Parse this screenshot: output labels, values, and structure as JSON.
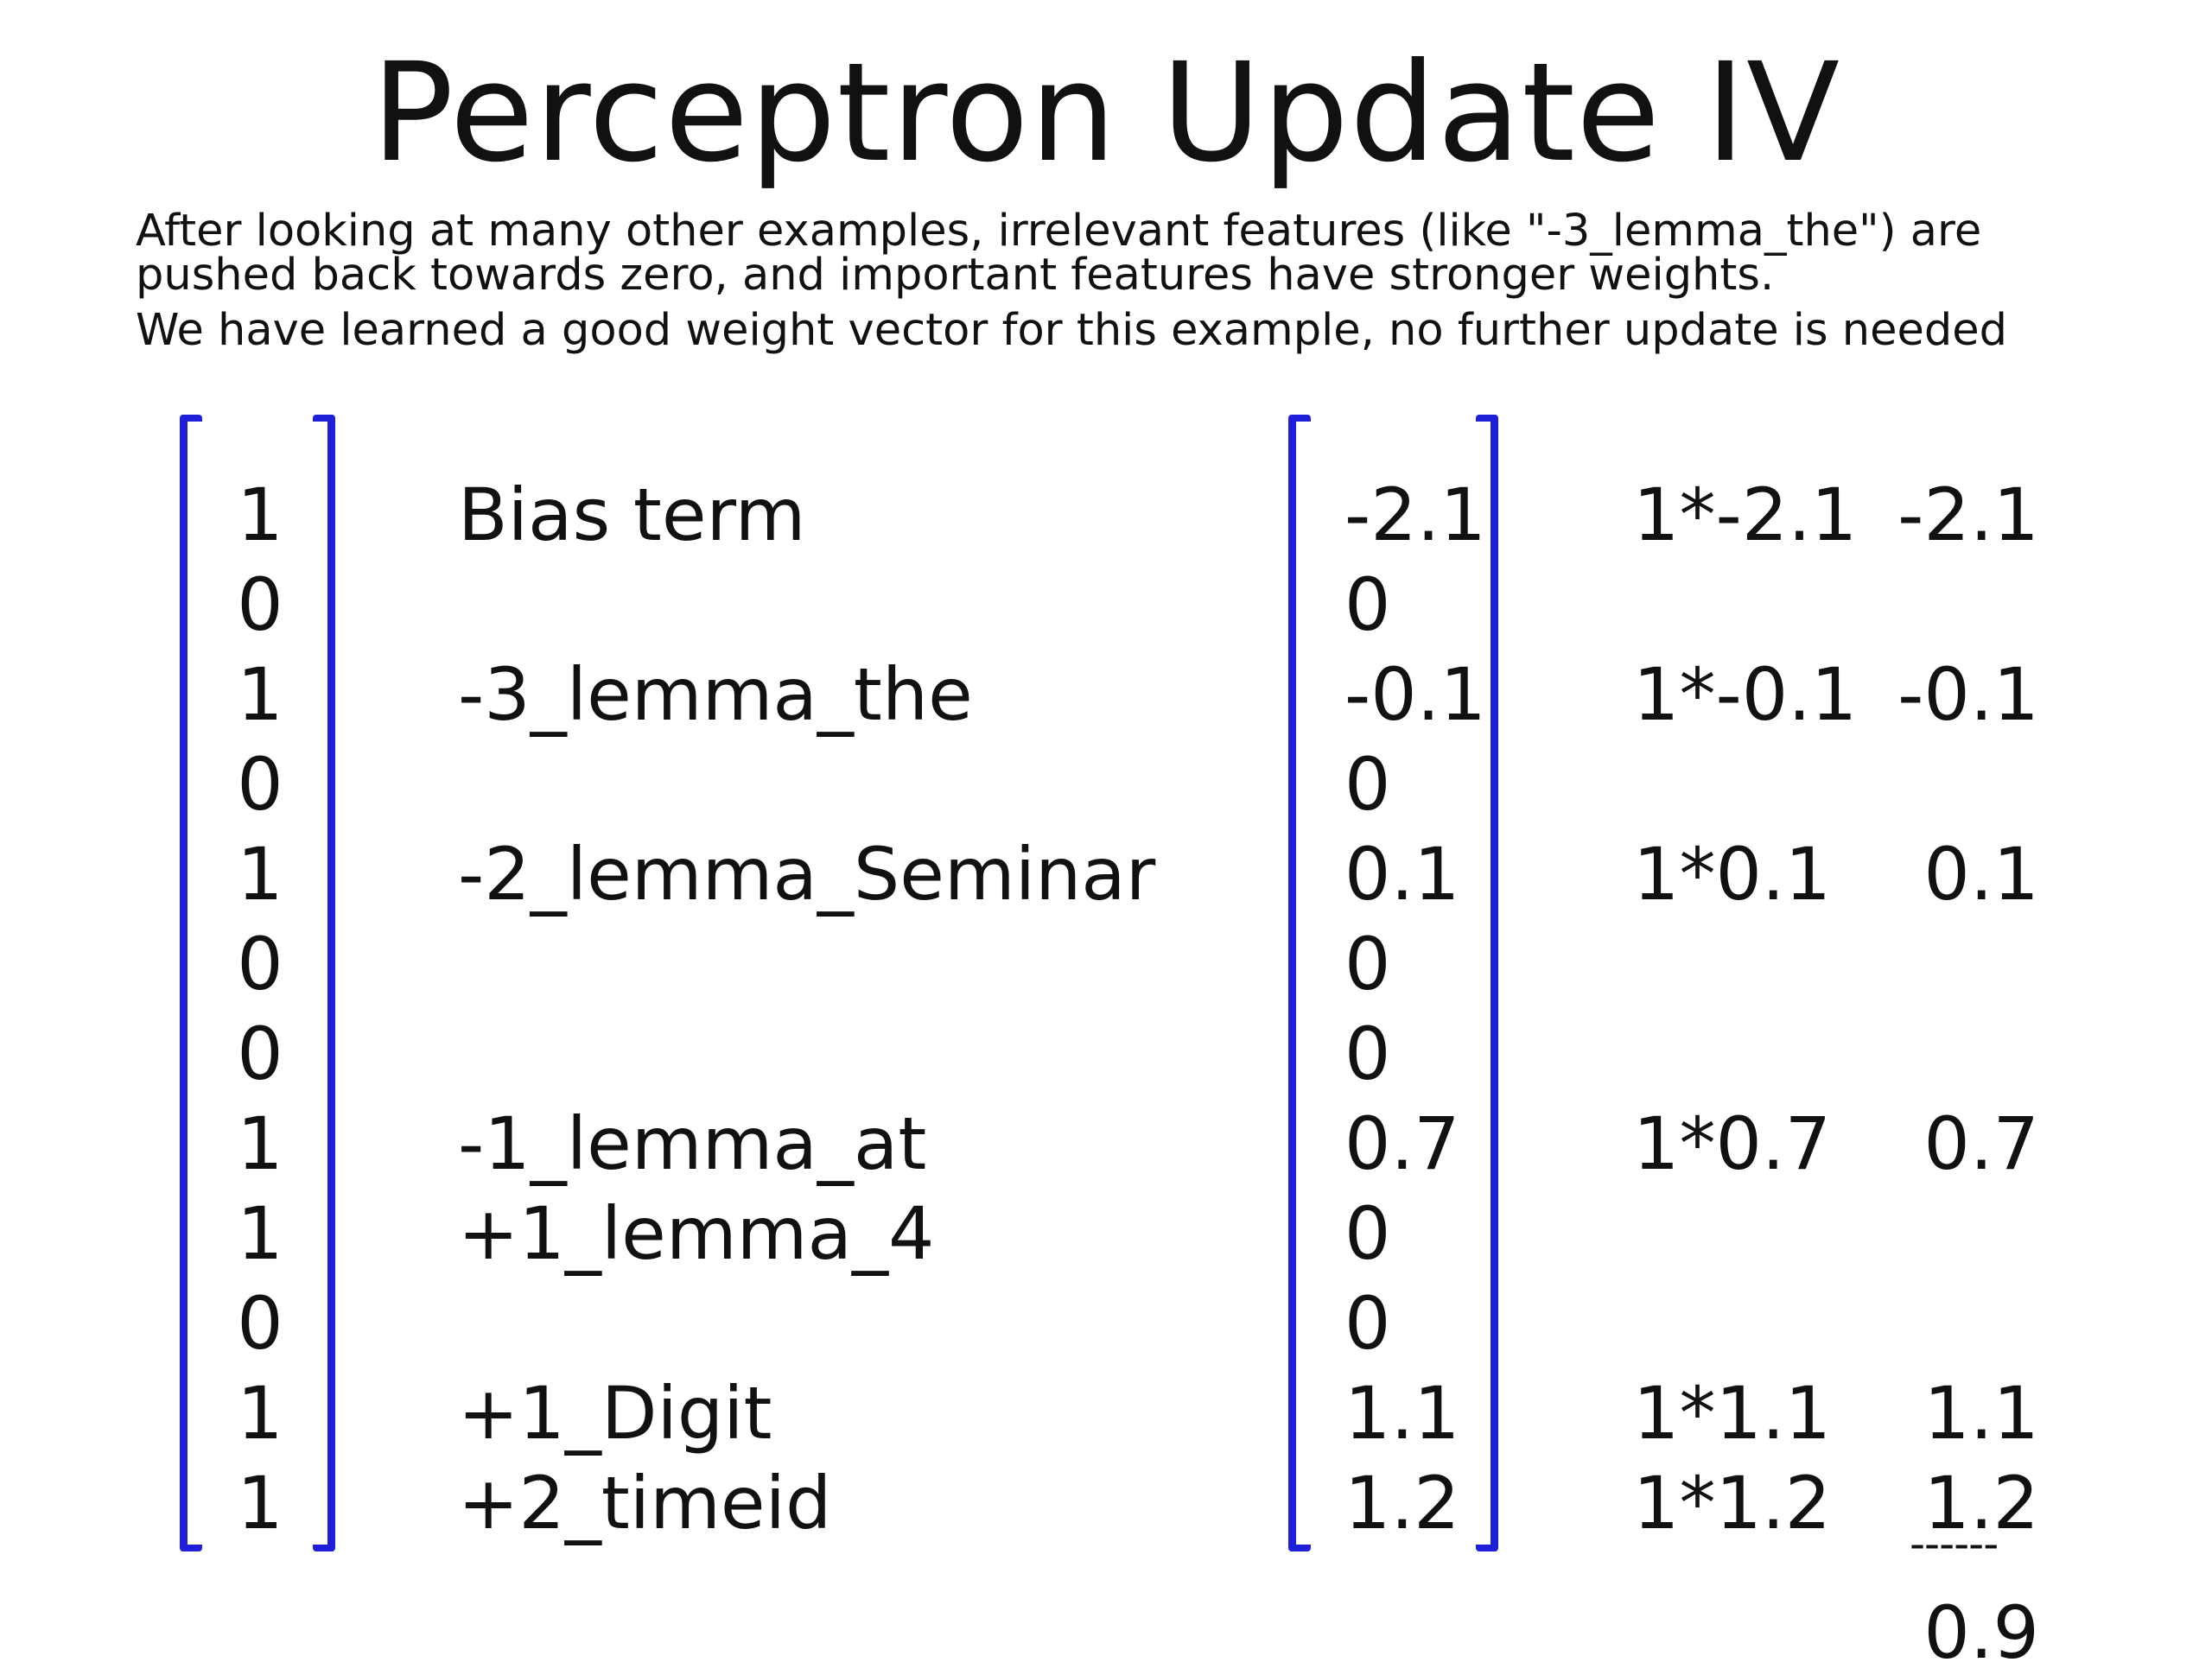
{
  "slide": {
    "title": "Perceptron Update IV",
    "description": [
      "After looking at many other examples, irrelevant features (like \"-3_lemma_the\") are",
      "pushed back towards zero, and important features have stronger weights.",
      "We have learned a good weight vector for this example, no further update is needed"
    ]
  },
  "rows": [
    {
      "feature": "1",
      "label": "Bias term",
      "weight": "-2.1",
      "product": "1*-2.1",
      "contribution": "-2.1"
    },
    {
      "feature": "0",
      "label": "",
      "weight": "0",
      "product": "",
      "contribution": ""
    },
    {
      "feature": "1",
      "label": "-3_lemma_the",
      "weight": "-0.1",
      "product": "1*-0.1",
      "contribution": "-0.1"
    },
    {
      "feature": "0",
      "label": "",
      "weight": "0",
      "product": "",
      "contribution": ""
    },
    {
      "feature": "1",
      "label": "-2_lemma_Seminar",
      "weight": "0.1",
      "product": "1*0.1",
      "contribution": "0.1"
    },
    {
      "feature": "0",
      "label": "",
      "weight": "0",
      "product": "",
      "contribution": ""
    },
    {
      "feature": "0",
      "label": "",
      "weight": "0",
      "product": "",
      "contribution": ""
    },
    {
      "feature": "1",
      "label": "-1_lemma_at",
      "weight": "0.7",
      "product": "1*0.7",
      "contribution": "0.7"
    },
    {
      "feature": "1",
      "label": "+1_lemma_4",
      "weight": "0",
      "product": "",
      "contribution": ""
    },
    {
      "feature": "0",
      "label": "",
      "weight": "0",
      "product": "",
      "contribution": ""
    },
    {
      "feature": "1",
      "label": "+1_Digit",
      "weight": "1.1",
      "product": "1*1.1",
      "contribution": "1.1"
    },
    {
      "feature": "1",
      "label": "+2_timeid",
      "weight": "1.2",
      "product": "1*1.2",
      "contribution": "1.2"
    }
  ],
  "sum": {
    "rule": "------",
    "total": "0.9"
  },
  "colors": {
    "bracket": "#1f1fd9",
    "text": "#111111"
  }
}
